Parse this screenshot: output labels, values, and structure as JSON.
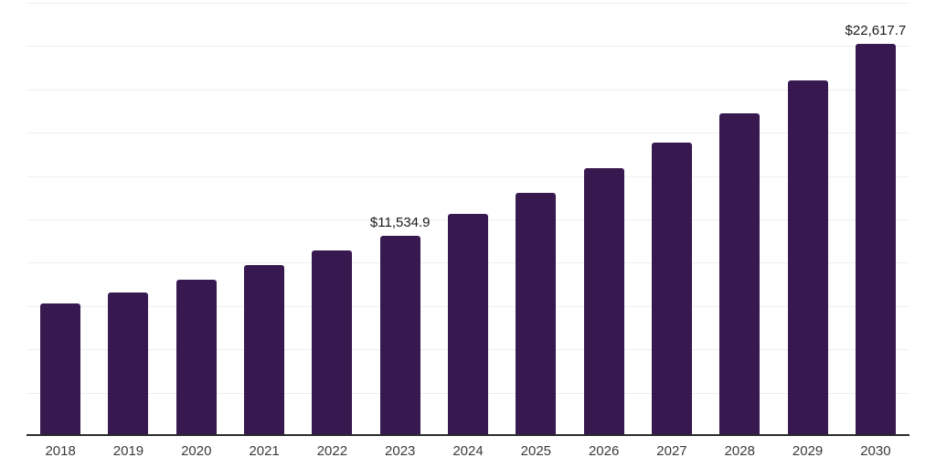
{
  "colors": {
    "background": "#FFFFFF",
    "bar": "#37184F",
    "gridline": "#EFEFEF",
    "axis_line": "#2B2B2B",
    "value_label_text": "#1A1A1A",
    "tick_label_text": "#3A3A3A"
  },
  "chart_data": {
    "type": "bar",
    "categories": [
      "2018",
      "2019",
      "2020",
      "2021",
      "2022",
      "2023",
      "2024",
      "2025",
      "2026",
      "2027",
      "2028",
      "2029",
      "2030"
    ],
    "values": [
      7660,
      8290,
      9030,
      9870,
      10700,
      11534.9,
      12800,
      14050,
      15480,
      16950,
      18630,
      20520,
      22617.7
    ],
    "value_labels": [
      null,
      null,
      null,
      null,
      null,
      "$11,534.9",
      null,
      null,
      null,
      null,
      null,
      null,
      "$22,617.7"
    ],
    "title": "",
    "xlabel": "",
    "ylabel": "",
    "ylim": [
      0,
      25000
    ],
    "gridline_interval": 2500,
    "grid": true,
    "legend": false
  }
}
